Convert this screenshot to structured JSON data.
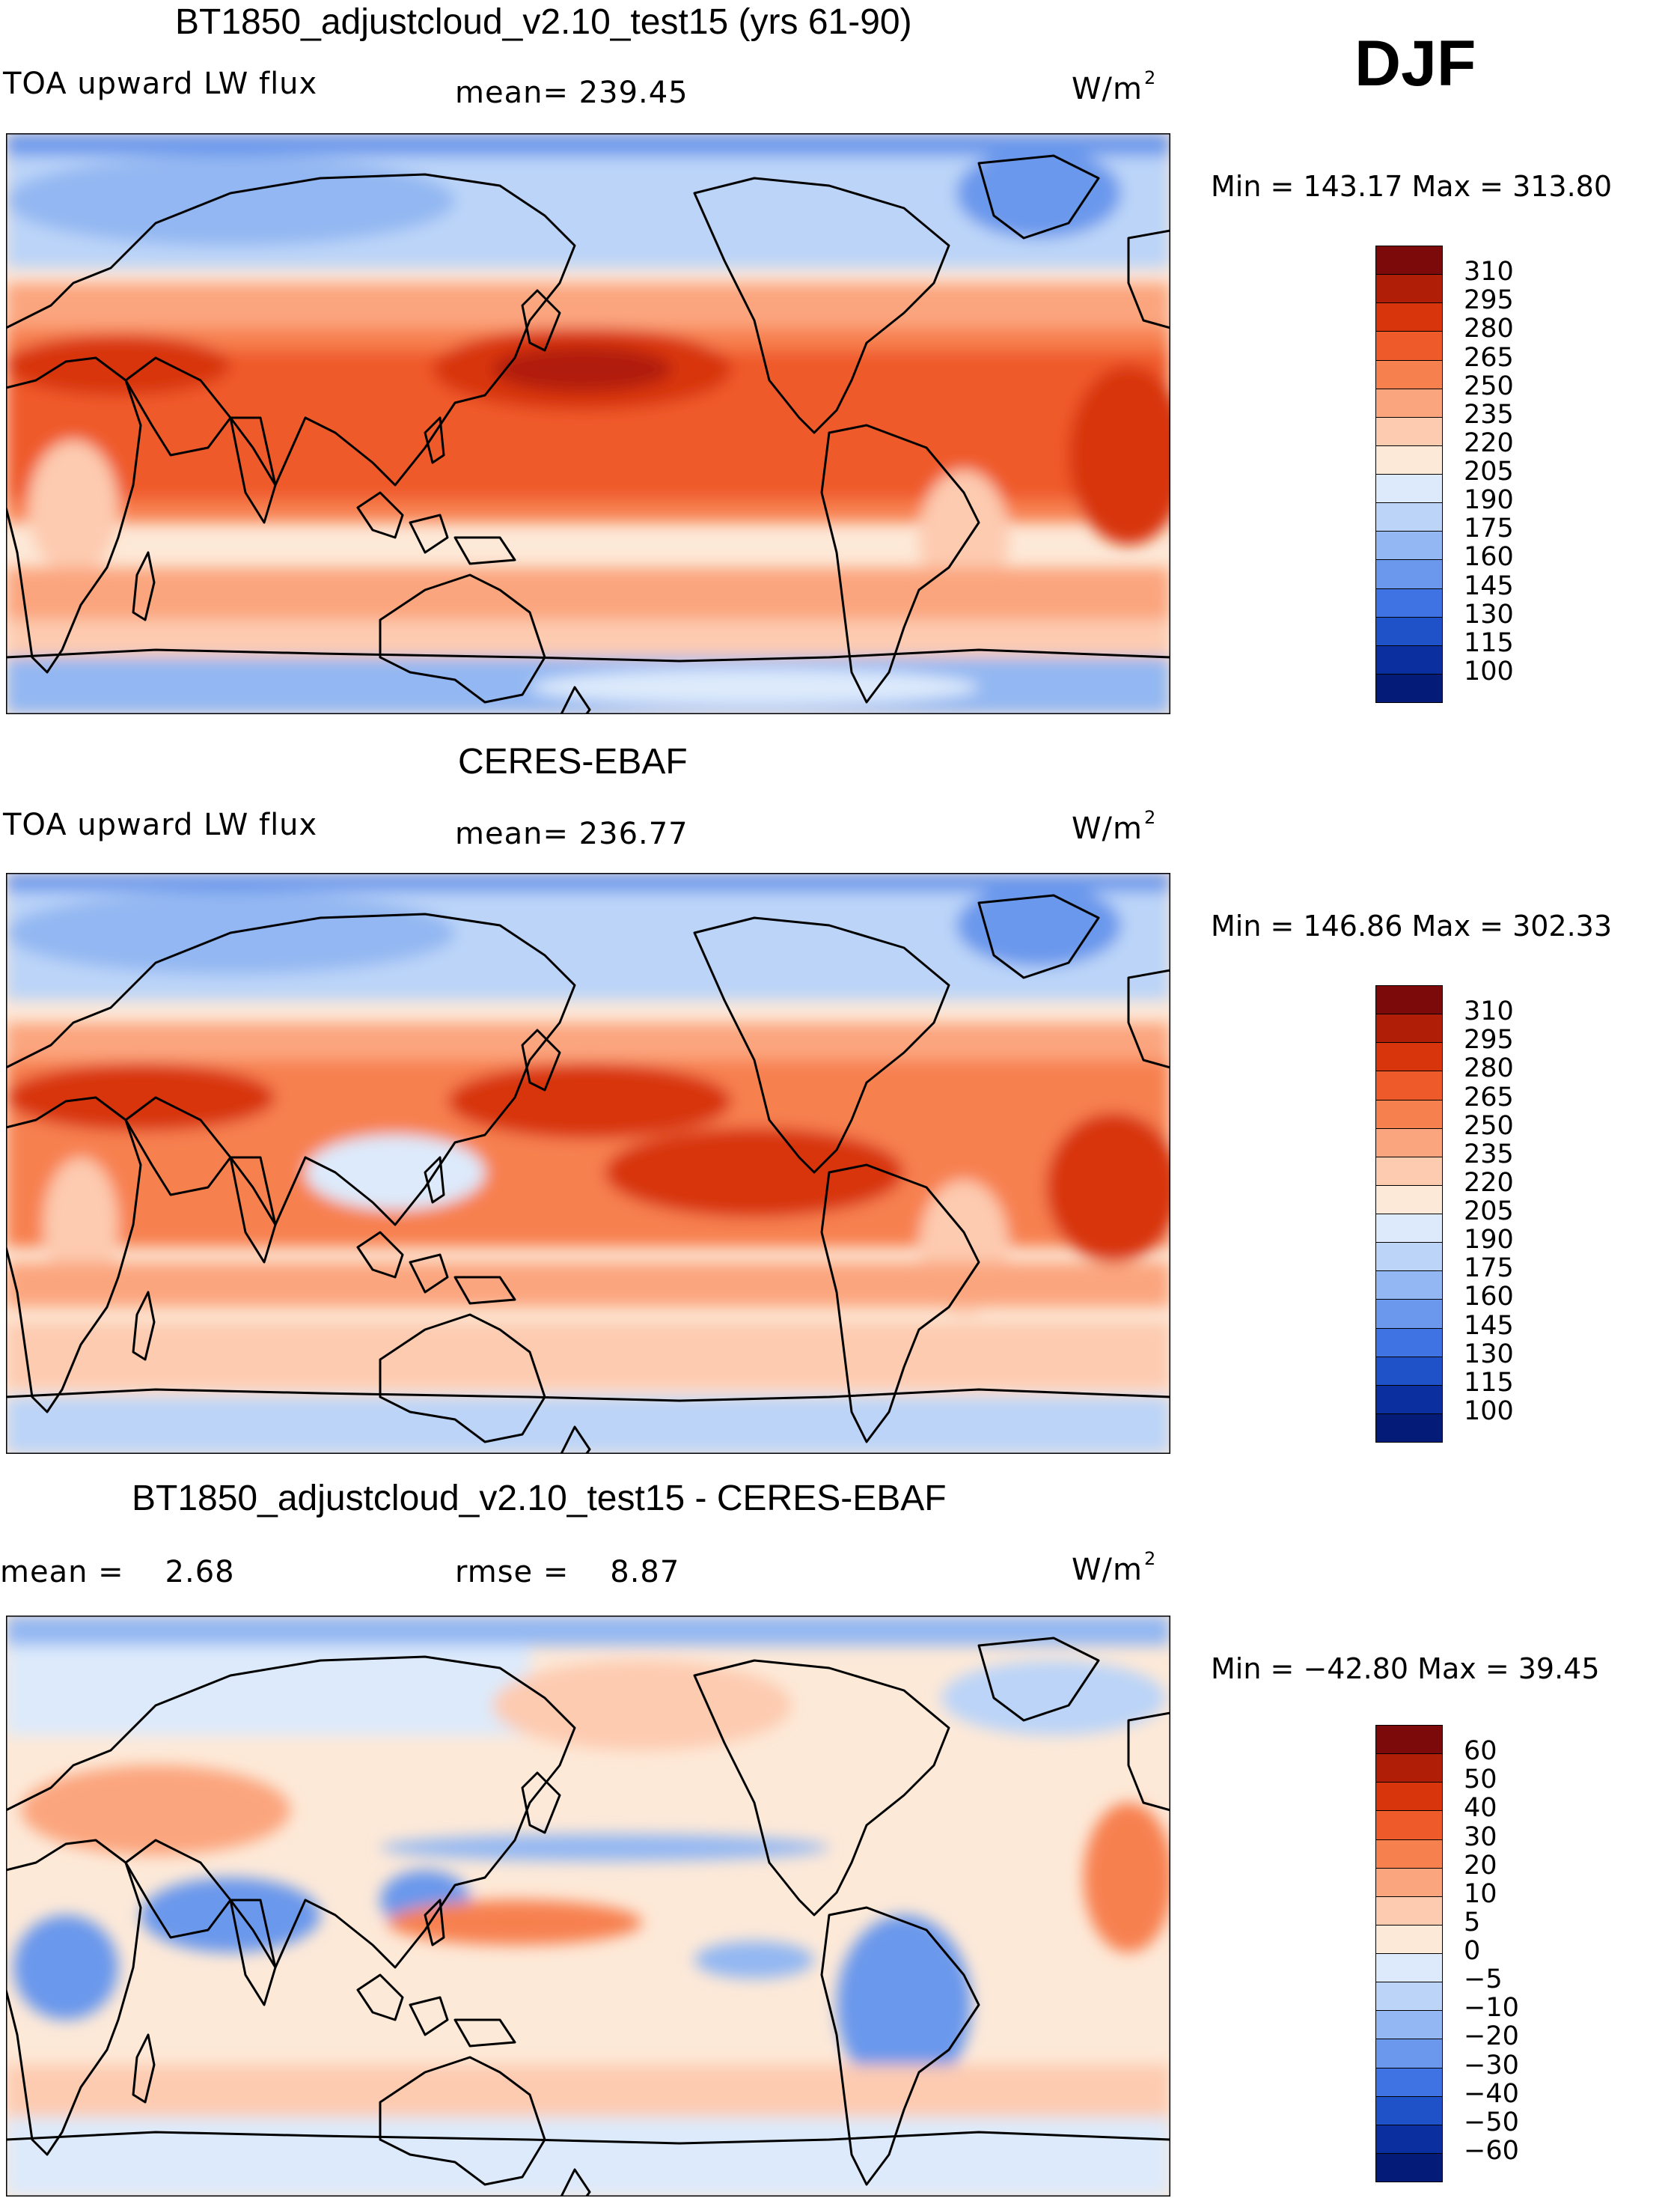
{
  "season": "DJF",
  "panels": [
    {
      "id": "model",
      "title": "BT1850_adjustcloud_v2.10_test15 (yrs 61-90)",
      "left_label": "TOA upward LW flux",
      "mid_label": "mean= 239.45",
      "unit_base": "W/m",
      "unit_exp": "2",
      "min_label": "Min",
      "min_value": "143.17",
      "max_label": "Max",
      "max_value": "313.80",
      "colorbar": {
        "labels": [
          "310",
          "295",
          "280",
          "265",
          "250",
          "235",
          "220",
          "205",
          "190",
          "175",
          "160",
          "145",
          "130",
          "115",
          "100"
        ],
        "colors": [
          "#7d0a0a",
          "#b01e08",
          "#d8350c",
          "#ef5a2a",
          "#f7804f",
          "#fba57e",
          "#fdcbb0",
          "#fde9d8",
          "#ddeafb",
          "#bbd4f8",
          "#93b7f2",
          "#6b98ec",
          "#3f73e4",
          "#1f51c8",
          "#0c2fa0",
          "#041c78"
        ]
      }
    },
    {
      "id": "obs",
      "title": "CERES-EBAF",
      "left_label": "TOA upward LW flux",
      "mid_label": "mean= 236.77",
      "unit_base": "W/m",
      "unit_exp": "2",
      "min_label": "Min",
      "min_value": "146.86",
      "max_label": "Max",
      "max_value": "302.33",
      "colorbar": {
        "labels": [
          "310",
          "295",
          "280",
          "265",
          "250",
          "235",
          "220",
          "205",
          "190",
          "175",
          "160",
          "145",
          "130",
          "115",
          "100"
        ],
        "colors": [
          "#7d0a0a",
          "#b01e08",
          "#d8350c",
          "#ef5a2a",
          "#f7804f",
          "#fba57e",
          "#fdcbb0",
          "#fde9d8",
          "#ddeafb",
          "#bbd4f8",
          "#93b7f2",
          "#6b98ec",
          "#3f73e4",
          "#1f51c8",
          "#0c2fa0",
          "#041c78"
        ]
      }
    },
    {
      "id": "diff",
      "title": "BT1850_adjustcloud_v2.10_test15 - CERES-EBAF",
      "left_label": "mean =    2.68",
      "mid_label": "rmse =    8.87",
      "unit_base": "W/m",
      "unit_exp": "2",
      "min_label": "Min",
      "min_value": "−42.80",
      "max_label": "Max",
      "max_value": "39.45",
      "colorbar": {
        "labels": [
          "60",
          "50",
          "40",
          "30",
          "20",
          "10",
          "5",
          "0",
          "−5",
          "−10",
          "−20",
          "−30",
          "−40",
          "−50",
          "−60"
        ],
        "colors": [
          "#7d0a0a",
          "#b01e08",
          "#d8350c",
          "#ef5a2a",
          "#f7804f",
          "#fba57e",
          "#fdcbb0",
          "#fde9d8",
          "#ddeafb",
          "#bbd4f8",
          "#93b7f2",
          "#6b98ec",
          "#3f73e4",
          "#1f51c8",
          "#0c2fa0",
          "#041c78"
        ]
      }
    }
  ]
}
